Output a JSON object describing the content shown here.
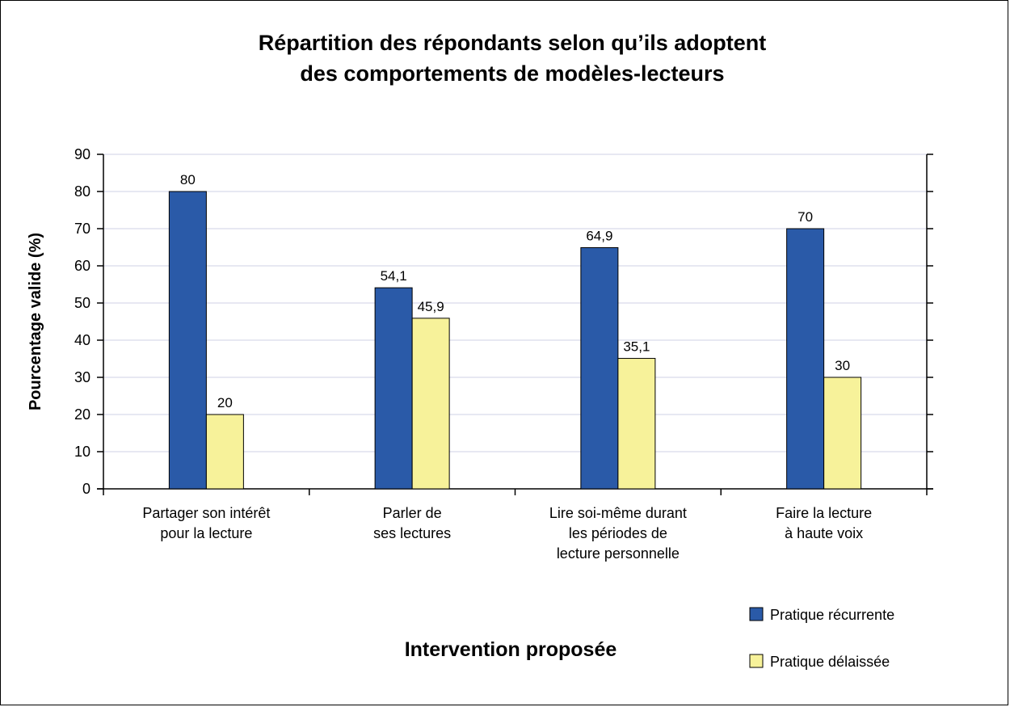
{
  "chart_data": {
    "type": "bar",
    "title_lines": [
      "Répartition des répondants selon qu’ils adoptent",
      "des comportements de modèles-lecteurs"
    ],
    "xlabel": "Intervention proposée",
    "ylabel": "Pourcentage valide (%)",
    "ylim": [
      0,
      90
    ],
    "yticks": [
      0,
      10,
      20,
      30,
      40,
      50,
      60,
      70,
      80,
      90
    ],
    "grid": true,
    "legend_position": "bottom-right",
    "categories": [
      [
        "Partager son intérêt",
        "pour la lecture"
      ],
      [
        "Parler de",
        "ses lectures"
      ],
      [
        "Lire soi-même durant",
        "les périodes de",
        "lecture personnelle"
      ],
      [
        "Faire la lecture",
        "à haute voix"
      ]
    ],
    "series": [
      {
        "name": "Pratique récurrente",
        "color": "#2a5aa8",
        "values": [
          80,
          54.1,
          64.9,
          70
        ],
        "labels": [
          "80",
          "54,1",
          "64,9",
          "70"
        ]
      },
      {
        "name": "Pratique délaissée",
        "color": "#f7f29a",
        "values": [
          20,
          45.9,
          35.1,
          30
        ],
        "labels": [
          "20",
          "45,9",
          "35,1",
          "30"
        ]
      }
    ]
  }
}
